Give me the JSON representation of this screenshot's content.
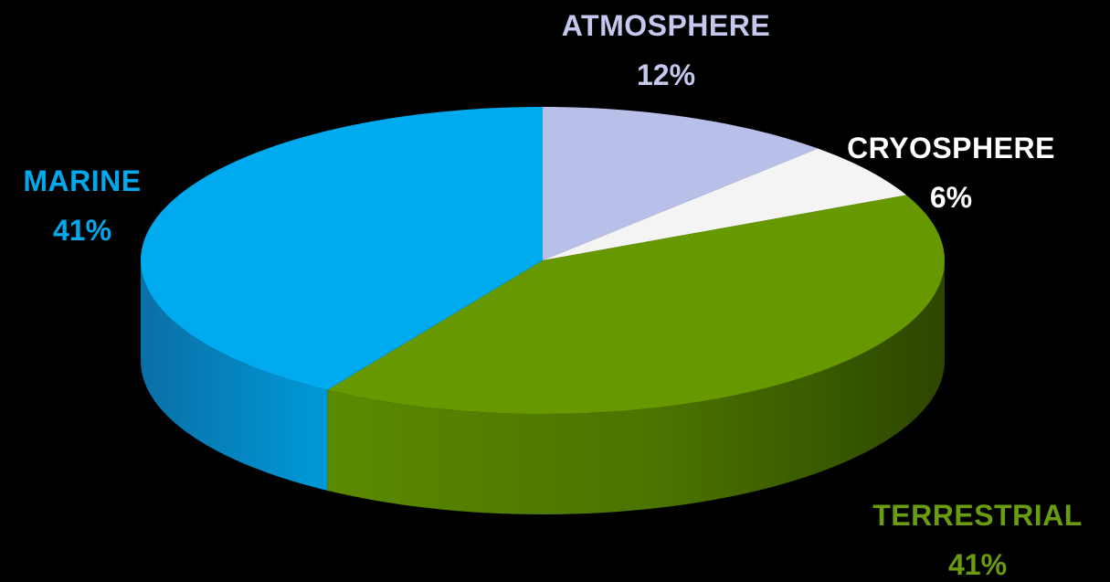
{
  "chart_data": {
    "type": "pie",
    "title": "",
    "style": "3d",
    "slices": [
      {
        "key": "atmosphere",
        "name": "ATMOSPHERE",
        "value": 12,
        "display": "12%",
        "color": "#b8bfe8",
        "label_color": "#c3c8ec"
      },
      {
        "key": "cryosphere",
        "name": "CRYOSPHERE",
        "value": 6,
        "display": "6%",
        "color": "#f4f4f4",
        "label_color": "#ffffff"
      },
      {
        "key": "terrestrial",
        "name": "TERRESTRIAL",
        "value": 41,
        "display": "41%",
        "color": "#669900",
        "label_color": "#6a9c10"
      },
      {
        "key": "marine",
        "name": "MARINE",
        "value": 41,
        "display": "41%",
        "color": "#00aaee",
        "label_color": "#00a9ec"
      }
    ],
    "start_angle": "12 o'clock",
    "direction": "clockwise",
    "background": "#000000"
  }
}
